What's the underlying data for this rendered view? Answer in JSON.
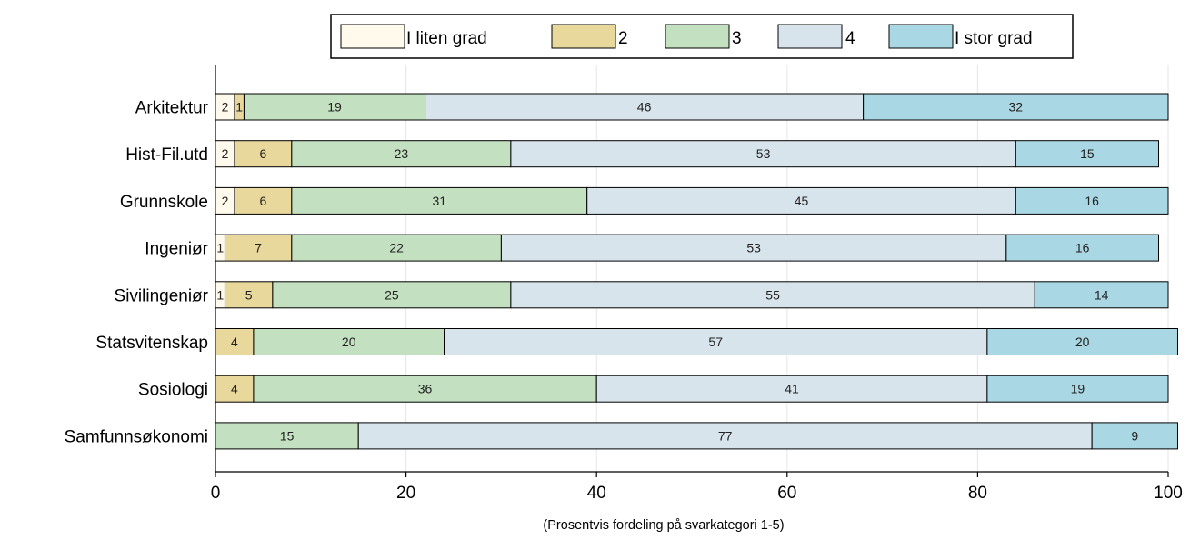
{
  "chart_data": {
    "type": "bar",
    "orientation": "horizontal",
    "stacked": true,
    "title": "",
    "xlabel": "(Prosentvis fordeling på svarkategori 1-5)",
    "ylabel": "",
    "xlim": [
      0,
      100
    ],
    "xticks": [
      0,
      20,
      40,
      60,
      80,
      100
    ],
    "grid": true,
    "legend_position": "top",
    "categories": [
      "Arkitektur",
      "Hist-Fil.utd",
      "Grunnskole",
      "Ingeniør",
      "Sivilingeniør",
      "Statsvitenskap",
      "Sosiologi",
      "Samfunnsøkonomi"
    ],
    "series": [
      {
        "name": "I liten grad",
        "color": "#fffaeb",
        "values": [
          2,
          2,
          2,
          1,
          1,
          0,
          0,
          0
        ]
      },
      {
        "name": "2",
        "color": "#e8d89c",
        "values": [
          1,
          6,
          6,
          7,
          5,
          4,
          4,
          0
        ]
      },
      {
        "name": "3",
        "color": "#c3e0c0",
        "values": [
          19,
          23,
          31,
          22,
          25,
          20,
          36,
          15
        ]
      },
      {
        "name": "4",
        "color": "#d7e4ec",
        "values": [
          46,
          53,
          45,
          53,
          55,
          57,
          41,
          77
        ]
      },
      {
        "name": "I stor grad",
        "color": "#a9d8e4",
        "values": [
          32,
          15,
          16,
          16,
          14,
          20,
          19,
          9
        ]
      }
    ]
  }
}
